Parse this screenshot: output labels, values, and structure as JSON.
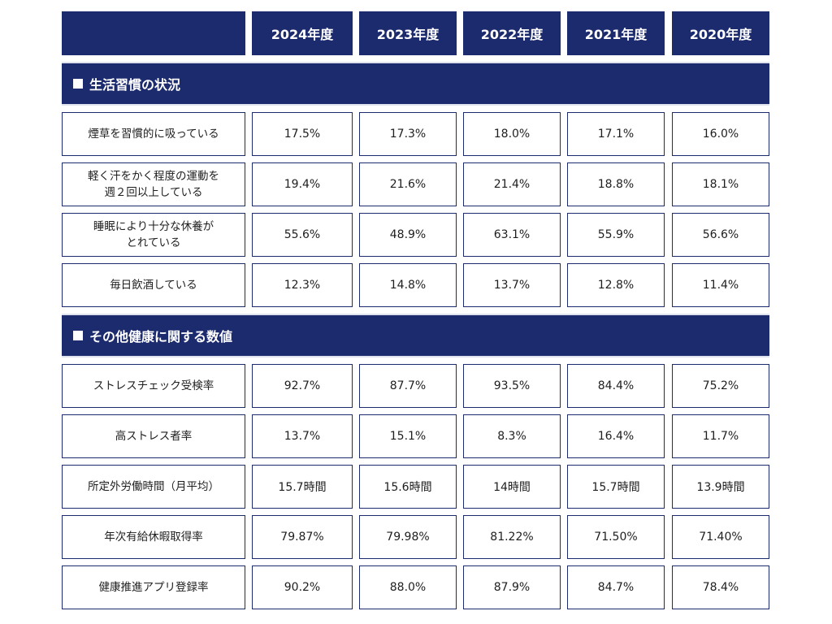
{
  "colors": {
    "navy": "#1c2a6e",
    "border": "#1c2a6e"
  },
  "header": {
    "corner": "",
    "years": [
      "2024年度",
      "2023年度",
      "2022年度",
      "2021年度",
      "2020年度"
    ]
  },
  "sections": [
    {
      "title": "生活習慣の状況",
      "rows": [
        {
          "label": [
            "煙草を習慣的に吸っている"
          ],
          "values": [
            "17.5%",
            "17.3%",
            "18.0%",
            "17.1%",
            "16.0%"
          ]
        },
        {
          "label": [
            "軽く汗をかく程度の運動を",
            "週２回以上している"
          ],
          "values": [
            "19.4%",
            "21.6%",
            "21.4%",
            "18.8%",
            "18.1%"
          ]
        },
        {
          "label": [
            "睡眠により十分な休養が",
            "とれている"
          ],
          "values": [
            "55.6%",
            "48.9%",
            "63.1%",
            "55.9%",
            "56.6%"
          ]
        },
        {
          "label": [
            "毎日飲酒している"
          ],
          "values": [
            "12.3%",
            "14.8%",
            "13.7%",
            "12.8%",
            "11.4%"
          ]
        }
      ]
    },
    {
      "title": "その他健康に関する数値",
      "rows": [
        {
          "label": [
            "ストレスチェック受検率"
          ],
          "values": [
            "92.7%",
            "87.7%",
            "93.5%",
            "84.4%",
            "75.2%"
          ]
        },
        {
          "label": [
            "高ストレス者率"
          ],
          "values": [
            "13.7%",
            "15.1%",
            "8.3%",
            "16.4%",
            "11.7%"
          ]
        },
        {
          "label": [
            "所定外労働時間（月平均）"
          ],
          "values": [
            "15.7時間",
            "15.6時間",
            "14時間",
            "15.7時間",
            "13.9時間"
          ]
        },
        {
          "label": [
            "年次有給休暇取得率"
          ],
          "values": [
            "79.87%",
            "79.98%",
            "81.22%",
            "71.50%",
            "71.40%"
          ]
        },
        {
          "label": [
            "健康推進アプリ登録率"
          ],
          "values": [
            "90.2%",
            "88.0%",
            "87.9%",
            "84.7%",
            "78.4%"
          ]
        }
      ]
    }
  ]
}
